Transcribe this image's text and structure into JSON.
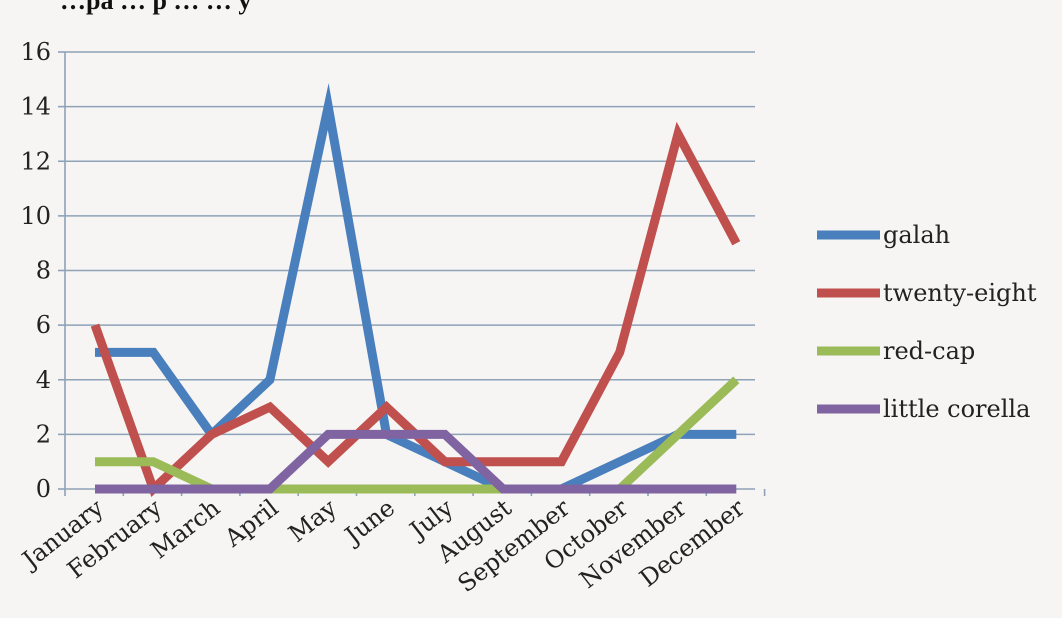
{
  "chart_data": {
    "type": "line",
    "title": "…pa … p … … y",
    "categories": [
      "January",
      "February",
      "March",
      "April",
      "May",
      "June",
      "July",
      "August",
      "September",
      "October",
      "November",
      "December"
    ],
    "ylim": [
      0,
      16
    ],
    "yticks": [
      0,
      2,
      4,
      6,
      8,
      10,
      12,
      14,
      16
    ],
    "grid": true,
    "legend_position": "right",
    "series": [
      {
        "name": "galah",
        "color": "#4a7fbd",
        "values": [
          5,
          5,
          2,
          4,
          14,
          2,
          1,
          0,
          0,
          1,
          2,
          2
        ]
      },
      {
        "name": "twenty-eight",
        "color": "#c0504d",
        "values": [
          6,
          0,
          2,
          3,
          1,
          3,
          1,
          1,
          1,
          5,
          13,
          9
        ]
      },
      {
        "name": "red-cap",
        "color": "#9bbb59",
        "values": [
          1,
          1,
          0,
          0,
          0,
          0,
          0,
          0,
          0,
          0,
          2,
          4
        ]
      },
      {
        "name": "little corella",
        "color": "#8064a2",
        "values": [
          0,
          0,
          0,
          0,
          2,
          2,
          2,
          0,
          0,
          0,
          0,
          0
        ]
      }
    ]
  }
}
